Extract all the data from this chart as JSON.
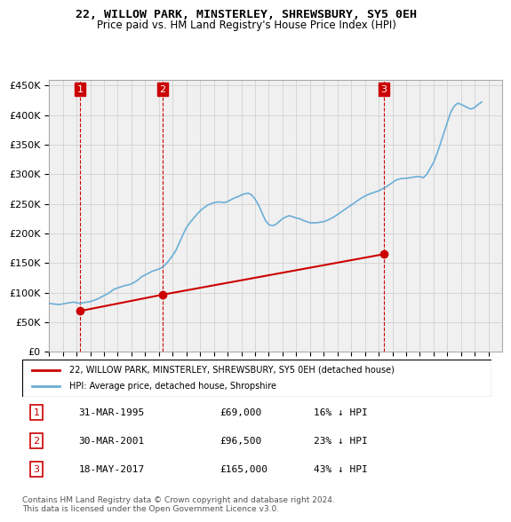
{
  "title": "22, WILLOW PARK, MINSTERLEY, SHREWSBURY, SY5 0EH",
  "subtitle": "Price paid vs. HM Land Registry's House Price Index (HPI)",
  "ylabel_ticks": [
    "£0",
    "£50K",
    "£100K",
    "£150K",
    "£200K",
    "£250K",
    "£300K",
    "£350K",
    "£400K",
    "£450K"
  ],
  "ytick_values": [
    0,
    50000,
    100000,
    150000,
    200000,
    250000,
    300000,
    350000,
    400000,
    450000
  ],
  "ylim": [
    0,
    460000
  ],
  "xlim_start": 1993,
  "xlim_end": 2026,
  "transactions": [
    {
      "num": 1,
      "year": 1995.25,
      "price": 69000,
      "date": "31-MAR-1995",
      "pct": "16%"
    },
    {
      "num": 2,
      "year": 2001.25,
      "price": 96500,
      "date": "30-MAR-2001",
      "pct": "23%"
    },
    {
      "num": 3,
      "year": 2017.38,
      "price": 165000,
      "date": "18-MAY-2017",
      "pct": "43%"
    }
  ],
  "hpi_color": "#6baed6",
  "price_color": "#cc0000",
  "transaction_marker_color": "#cc0000",
  "transaction_label_bg": "#cc0000",
  "grid_color": "#cccccc",
  "bg_color": "#f0f0f0",
  "legend_label_price": "22, WILLOW PARK, MINSTERLEY, SHREWSBURY, SY5 0EH (detached house)",
  "legend_label_hpi": "HPI: Average price, detached house, Shropshire",
  "footnote": "Contains HM Land Registry data © Crown copyright and database right 2024.\nThis data is licensed under the Open Government Licence v3.0.",
  "hpi_data": {
    "years": [
      1993.0,
      1993.25,
      1993.5,
      1993.75,
      1994.0,
      1994.25,
      1994.5,
      1994.75,
      1995.0,
      1995.25,
      1995.5,
      1995.75,
      1996.0,
      1996.25,
      1996.5,
      1996.75,
      1997.0,
      1997.25,
      1997.5,
      1997.75,
      1998.0,
      1998.25,
      1998.5,
      1998.75,
      1999.0,
      1999.25,
      1999.5,
      1999.75,
      2000.0,
      2000.25,
      2000.5,
      2000.75,
      2001.0,
      2001.25,
      2001.5,
      2001.75,
      2002.0,
      2002.25,
      2002.5,
      2002.75,
      2003.0,
      2003.25,
      2003.5,
      2003.75,
      2004.0,
      2004.25,
      2004.5,
      2004.75,
      2005.0,
      2005.25,
      2005.5,
      2005.75,
      2006.0,
      2006.25,
      2006.5,
      2006.75,
      2007.0,
      2007.25,
      2007.5,
      2007.75,
      2008.0,
      2008.25,
      2008.5,
      2008.75,
      2009.0,
      2009.25,
      2009.5,
      2009.75,
      2010.0,
      2010.25,
      2010.5,
      2010.75,
      2011.0,
      2011.25,
      2011.5,
      2011.75,
      2012.0,
      2012.25,
      2012.5,
      2012.75,
      2013.0,
      2013.25,
      2013.5,
      2013.75,
      2014.0,
      2014.25,
      2014.5,
      2014.75,
      2015.0,
      2015.25,
      2015.5,
      2015.75,
      2016.0,
      2016.25,
      2016.5,
      2016.75,
      2017.0,
      2017.25,
      2017.5,
      2017.75,
      2018.0,
      2018.25,
      2018.5,
      2018.75,
      2019.0,
      2019.25,
      2019.5,
      2019.75,
      2020.0,
      2020.25,
      2020.5,
      2020.75,
      2021.0,
      2021.25,
      2021.5,
      2021.75,
      2022.0,
      2022.25,
      2022.5,
      2022.75,
      2023.0,
      2023.25,
      2023.5,
      2023.75,
      2024.0,
      2024.25,
      2024.5
    ],
    "values": [
      82000,
      81000,
      80500,
      80000,
      81000,
      82000,
      83000,
      84000,
      83000,
      82000,
      83000,
      84000,
      85000,
      87000,
      89000,
      92000,
      95000,
      98000,
      102000,
      106000,
      108000,
      110000,
      112000,
      113000,
      115000,
      118000,
      122000,
      127000,
      130000,
      133000,
      136000,
      138000,
      140000,
      143000,
      148000,
      155000,
      163000,
      172000,
      185000,
      198000,
      210000,
      218000,
      225000,
      232000,
      238000,
      243000,
      247000,
      250000,
      252000,
      253000,
      253000,
      252000,
      254000,
      257000,
      260000,
      262000,
      265000,
      267000,
      268000,
      265000,
      258000,
      248000,
      235000,
      222000,
      215000,
      213000,
      215000,
      220000,
      225000,
      228000,
      230000,
      228000,
      226000,
      225000,
      222000,
      220000,
      218000,
      218000,
      218000,
      219000,
      220000,
      222000,
      225000,
      228000,
      232000,
      236000,
      240000,
      244000,
      248000,
      252000,
      256000,
      260000,
      263000,
      266000,
      268000,
      270000,
      272000,
      275000,
      278000,
      282000,
      286000,
      290000,
      292000,
      293000,
      293000,
      294000,
      295000,
      296000,
      296000,
      294000,
      300000,
      310000,
      320000,
      335000,
      352000,
      370000,
      388000,
      405000,
      415000,
      420000,
      418000,
      415000,
      412000,
      410000,
      413000,
      418000,
      422000
    ]
  },
  "price_data": {
    "years": [
      1995.25,
      2001.25,
      2017.38
    ],
    "values": [
      69000,
      96500,
      165000
    ]
  }
}
